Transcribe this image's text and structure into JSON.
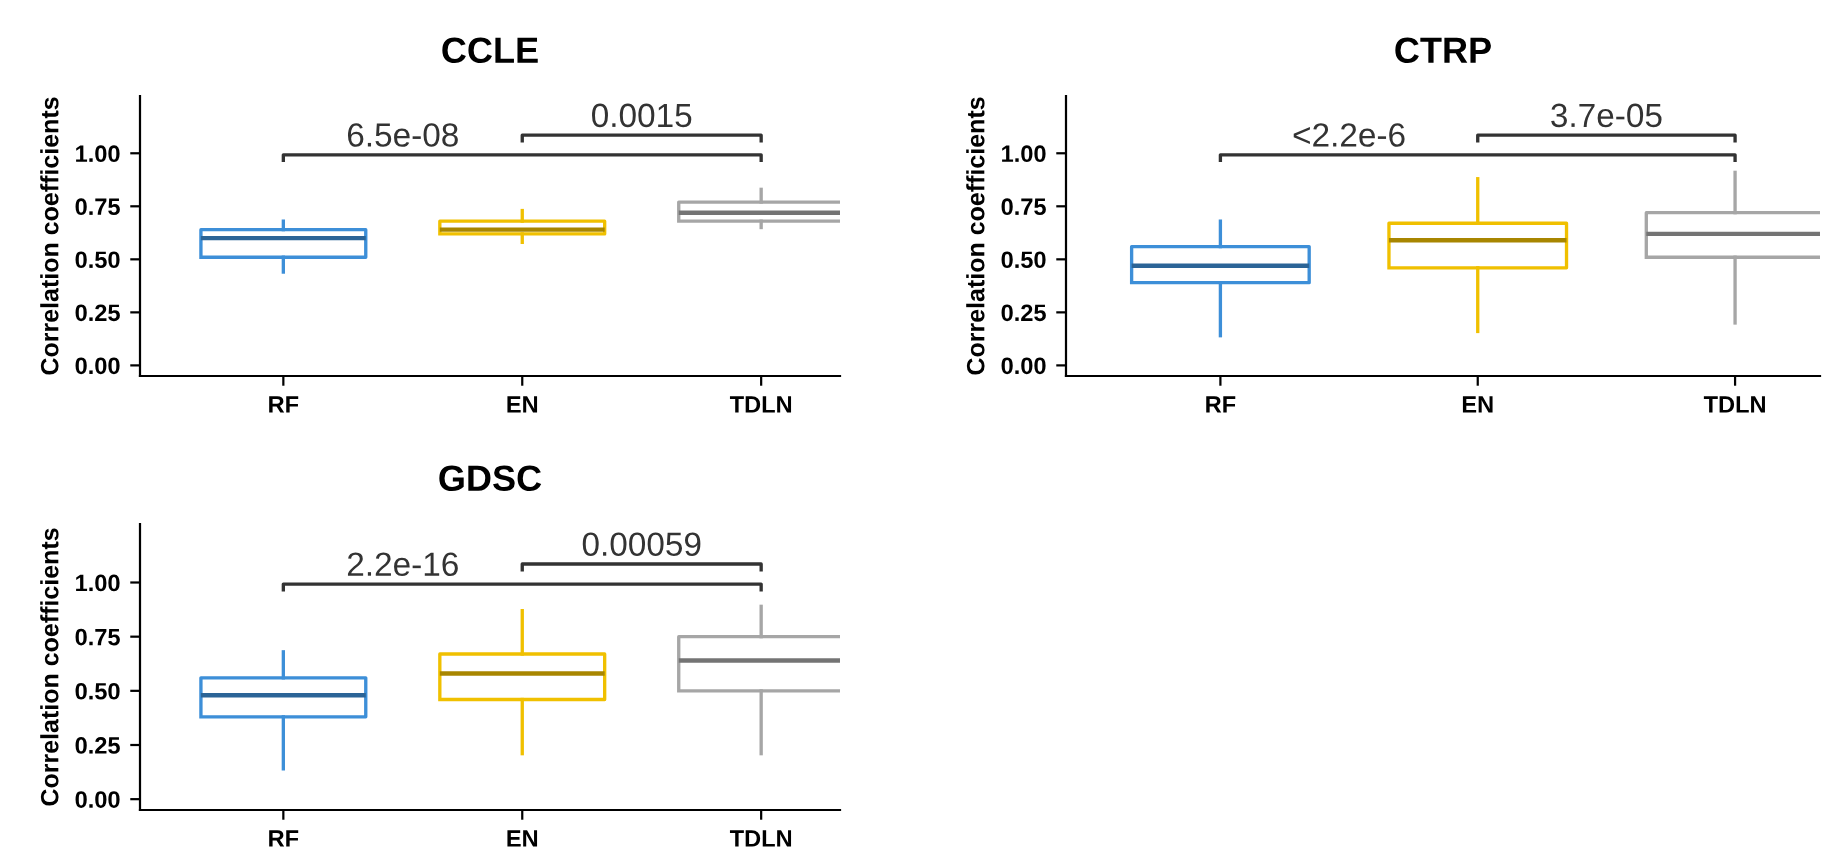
{
  "chart_data": [
    {
      "type": "box",
      "title": "CCLE",
      "ylabel": "Correlation coefficients",
      "categories": [
        "RF",
        "EN",
        "TDLN"
      ],
      "colors": [
        "#3d8fd8",
        "#f0c000",
        "#a6a6a6"
      ],
      "ylim": [
        -0.05,
        1.27
      ],
      "yticks": [
        {
          "value": 0,
          "label": "0.00"
        },
        {
          "value": 0.25,
          "label": "0.25"
        },
        {
          "value": 0.5,
          "label": "0.50"
        },
        {
          "value": 0.75,
          "label": "0.75"
        },
        {
          "value": 1,
          "label": "1.00"
        }
      ],
      "grid": false,
      "annotations": [
        "6.5e-08",
        "0.0015"
      ],
      "boxes": [
        {
          "low": 0.44,
          "q1": 0.51,
          "median": 0.6,
          "q3": 0.64,
          "high": 0.68
        },
        {
          "low": 0.58,
          "q1": 0.62,
          "median": 0.64,
          "q3": 0.68,
          "high": 0.73
        },
        {
          "low": 0.65,
          "q1": 0.68,
          "median": 0.72,
          "q3": 0.77,
          "high": 0.83
        }
      ]
    },
    {
      "type": "box",
      "title": "CTRP",
      "ylabel": "Correlation coefficients",
      "categories": [
        "RF",
        "EN",
        "TDLN"
      ],
      "colors": [
        "#3d8fd8",
        "#f0c000",
        "#a6a6a6"
      ],
      "ylim": [
        -0.05,
        1.27
      ],
      "yticks": [
        {
          "value": 0,
          "label": "0.00"
        },
        {
          "value": 0.25,
          "label": "0.25"
        },
        {
          "value": 0.5,
          "label": "0.50"
        },
        {
          "value": 0.75,
          "label": "0.75"
        },
        {
          "value": 1,
          "label": "1.00"
        }
      ],
      "grid": false,
      "annotations": [
        "<2.2e-6",
        "3.7e-05"
      ],
      "boxes": [
        {
          "low": 0.14,
          "q1": 0.39,
          "median": 0.47,
          "q3": 0.56,
          "high": 0.68
        },
        {
          "low": 0.16,
          "q1": 0.46,
          "median": 0.59,
          "q3": 0.67,
          "high": 0.88
        },
        {
          "low": 0.2,
          "q1": 0.51,
          "median": 0.62,
          "q3": 0.72,
          "high": 0.91
        }
      ]
    },
    {
      "type": "box",
      "title": "GDSC",
      "ylabel": "Correlation coefficients",
      "categories": [
        "RF",
        "EN",
        "TDLN"
      ],
      "colors": [
        "#3d8fd8",
        "#f0c000",
        "#a6a6a6"
      ],
      "ylim": [
        -0.05,
        1.27
      ],
      "yticks": [
        {
          "value": 0,
          "label": "0.00"
        },
        {
          "value": 0.25,
          "label": "0.25"
        },
        {
          "value": 0.5,
          "label": "0.50"
        },
        {
          "value": 0.75,
          "label": "0.75"
        },
        {
          "value": 1,
          "label": "1.00"
        }
      ],
      "grid": false,
      "annotations": [
        "2.2e-16",
        "0.00059"
      ],
      "boxes": [
        {
          "low": 0.14,
          "q1": 0.38,
          "median": 0.48,
          "q3": 0.56,
          "high": 0.68
        },
        {
          "low": 0.21,
          "q1": 0.46,
          "median": 0.58,
          "q3": 0.67,
          "high": 0.87
        },
        {
          "low": 0.21,
          "q1": 0.5,
          "median": 0.64,
          "q3": 0.75,
          "high": 0.89
        }
      ]
    }
  ]
}
